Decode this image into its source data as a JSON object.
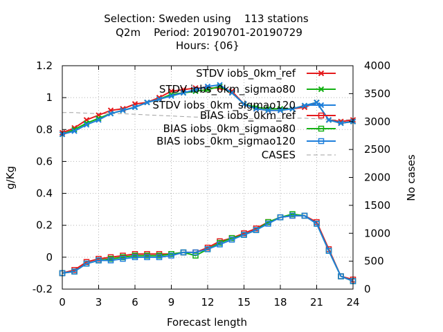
{
  "chart_data": {
    "type": "line",
    "title_lines": [
      "Selection: Sweden using    113 stations",
      "Q2m    Period: 20190701-20190729",
      "Hours: {06}"
    ],
    "xlabel": "Forecast length",
    "ylabel": "g/Kg",
    "y2label": "No cases",
    "xlim": [
      0,
      24
    ],
    "ylim": [
      -0.2,
      1.2
    ],
    "y2lim": [
      0,
      4000
    ],
    "xticks": [
      0,
      3,
      6,
      9,
      12,
      15,
      18,
      21,
      24
    ],
    "yticks": [
      -0.2,
      0,
      0.2,
      0.4,
      0.6,
      0.8,
      1,
      1.2
    ],
    "ytick_labels": [
      "-0.2",
      "0",
      "0.2",
      "0.4",
      "0.6",
      "0.8",
      "1",
      "1.2"
    ],
    "y2ticks": [
      0,
      500,
      1000,
      1500,
      2000,
      2500,
      3000,
      3500,
      4000
    ],
    "grid": true,
    "legend_position": "top-right",
    "x": [
      0,
      1,
      2,
      3,
      4,
      5,
      6,
      7,
      8,
      9,
      10,
      11,
      12,
      13,
      14,
      15,
      16,
      17,
      18,
      19,
      20,
      21,
      22,
      23,
      24
    ],
    "series": [
      {
        "name": "STDV iobs_0km_ref",
        "color": "#e41a1c",
        "marker": "x",
        "axis": "y1",
        "values": [
          0.78,
          0.81,
          0.86,
          0.89,
          0.92,
          0.93,
          0.96,
          0.97,
          1.0,
          1.04,
          1.05,
          1.06,
          1.06,
          1.06,
          1.04,
          0.96,
          0.93,
          0.92,
          0.92,
          0.93,
          0.94,
          0.97,
          0.86,
          0.85,
          0.86
        ]
      },
      {
        "name": "STDV iobs_0km_sigmao80",
        "color": "#13b013",
        "marker": "x",
        "axis": "y1",
        "values": [
          0.77,
          0.8,
          0.84,
          0.87,
          0.9,
          0.92,
          0.94,
          0.97,
          0.99,
          1.02,
          1.03,
          1.04,
          1.05,
          1.07,
          1.03,
          0.96,
          0.94,
          0.93,
          0.93,
          0.93,
          0.95,
          0.97,
          0.86,
          0.84,
          0.85
        ]
      },
      {
        "name": "STDV iobs_0km_sigmao120",
        "color": "#1e7fdb",
        "marker": "x",
        "axis": "y1",
        "values": [
          0.77,
          0.79,
          0.83,
          0.86,
          0.9,
          0.92,
          0.94,
          0.97,
          0.99,
          1.01,
          1.03,
          1.05,
          1.07,
          1.08,
          1.03,
          0.96,
          0.93,
          0.92,
          0.92,
          0.93,
          0.95,
          0.97,
          0.86,
          0.84,
          0.85
        ]
      },
      {
        "name": "BIAS iobs_0km_ref",
        "color": "#e41a1c",
        "marker": "square",
        "axis": "y1",
        "values": [
          -0.1,
          -0.08,
          -0.03,
          -0.01,
          0.0,
          0.01,
          0.02,
          0.02,
          0.02,
          0.02,
          0.03,
          0.03,
          0.06,
          0.1,
          0.12,
          0.15,
          0.18,
          0.22,
          0.25,
          0.26,
          0.26,
          0.22,
          0.05,
          -0.12,
          -0.14
        ]
      },
      {
        "name": "BIAS iobs_0km_sigmao80",
        "color": "#13b013",
        "marker": "square",
        "axis": "y1",
        "values": [
          -0.1,
          -0.09,
          -0.04,
          -0.02,
          -0.01,
          0.0,
          0.01,
          0.01,
          0.01,
          0.02,
          0.03,
          0.01,
          0.05,
          0.09,
          0.12,
          0.14,
          0.17,
          0.22,
          0.25,
          0.27,
          0.26,
          0.21,
          0.04,
          -0.12,
          -0.15
        ]
      },
      {
        "name": "BIAS iobs_0km_sigmao120",
        "color": "#1e7fdb",
        "marker": "square",
        "axis": "y1",
        "values": [
          -0.1,
          -0.09,
          -0.04,
          -0.02,
          -0.02,
          -0.01,
          0.0,
          0.0,
          0.0,
          0.01,
          0.03,
          0.03,
          0.05,
          0.08,
          0.11,
          0.14,
          0.17,
          0.21,
          0.25,
          0.26,
          0.26,
          0.21,
          0.04,
          -0.12,
          -0.15
        ]
      },
      {
        "name": "CASES",
        "color": "#a0a0a0",
        "marker": "none",
        "dash": true,
        "axis": "y2",
        "values": [
          3160,
          3160,
          3150,
          3140,
          3140,
          3140,
          3130,
          3120,
          3110,
          3100,
          3090,
          3080,
          3080,
          3080,
          3060,
          3050,
          3050,
          3050,
          3060,
          3060,
          3060,
          3050,
          3030,
          3030,
          3030
        ]
      }
    ]
  }
}
